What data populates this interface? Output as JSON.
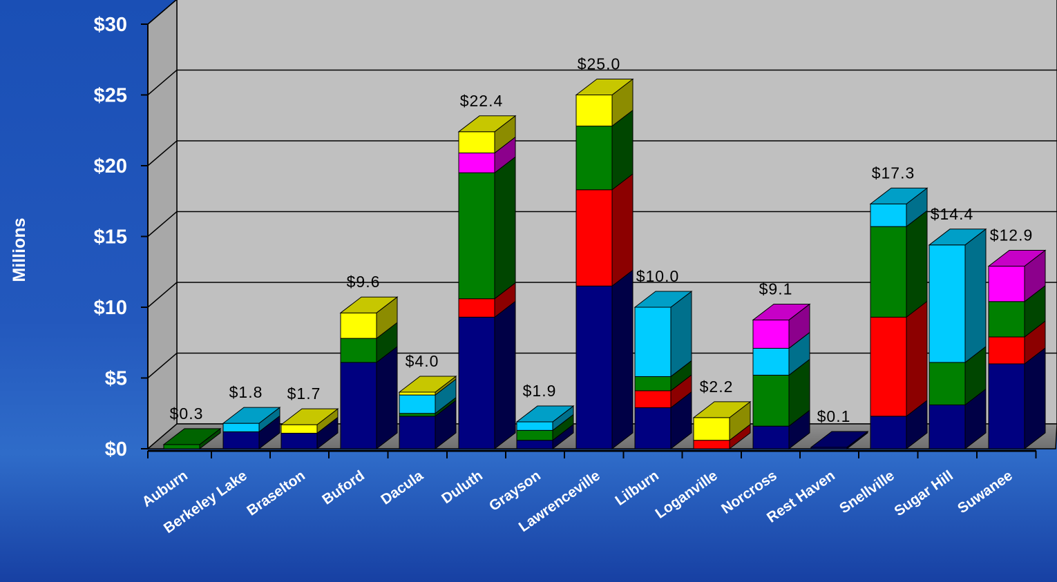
{
  "chart_data": {
    "type": "bar",
    "stacked": true,
    "three_d": true,
    "ylabel": "Millions",
    "ylim": [
      0,
      30
    ],
    "yticks": [
      "$0",
      "$5",
      "$10",
      "$15",
      "$20",
      "$25",
      "$30"
    ],
    "ytick_values": [
      0,
      5,
      10,
      15,
      20,
      25,
      30
    ],
    "grid": true,
    "legend": "none",
    "categories": [
      "Auburn",
      "Berkeley Lake",
      "Braselton",
      "Buford",
      "Dacula",
      "Duluth",
      "Grayson",
      "Lawrenceville",
      "Lilburn",
      "Loganville",
      "Norcross",
      "Rest Haven",
      "Snellville",
      "Sugar Hill",
      "Suwanee"
    ],
    "totals": [
      "$0.3",
      "$1.8",
      "$1.7",
      "$9.6",
      "$4.0",
      "$22.4",
      "$1.9",
      "$25.0",
      "$10.0",
      "$2.2",
      "$9.1",
      "$0.1",
      "$17.3",
      "$14.4",
      "$12.9"
    ],
    "series": [
      {
        "color": "#000080",
        "values": [
          0.0,
          1.2,
          1.1,
          6.1,
          2.3,
          9.3,
          0.6,
          11.5,
          2.9,
          0.0,
          1.6,
          0.1,
          2.3,
          3.1,
          6.0
        ]
      },
      {
        "color": "#ff0000",
        "values": [
          0.0,
          0.0,
          0.0,
          0.0,
          0.0,
          1.3,
          0.0,
          6.8,
          1.2,
          0.6,
          0.0,
          0.0,
          7.0,
          0.0,
          1.9
        ]
      },
      {
        "color": "#008000",
        "values": [
          0.3,
          0.0,
          0.0,
          1.7,
          0.2,
          8.9,
          0.7,
          4.5,
          1.0,
          0.0,
          3.6,
          0.0,
          6.4,
          3.0,
          2.5
        ]
      },
      {
        "color": "#00ccff",
        "values": [
          0.0,
          0.6,
          0.0,
          0.0,
          1.3,
          0.0,
          0.6,
          0.0,
          4.9,
          0.0,
          1.9,
          0.0,
          1.6,
          8.3,
          0.0
        ]
      },
      {
        "color": "#ff00ff",
        "values": [
          0.0,
          0.0,
          0.0,
          0.0,
          0.0,
          1.4,
          0.0,
          0.0,
          0.0,
          0.0,
          2.0,
          0.0,
          0.0,
          0.0,
          2.5
        ]
      },
      {
        "color": "#ffff00",
        "values": [
          0.0,
          0.0,
          0.6,
          1.8,
          0.2,
          1.5,
          0.0,
          2.2,
          0.0,
          1.6,
          0.0,
          0.0,
          0.0,
          0.0,
          0.0
        ]
      }
    ]
  }
}
